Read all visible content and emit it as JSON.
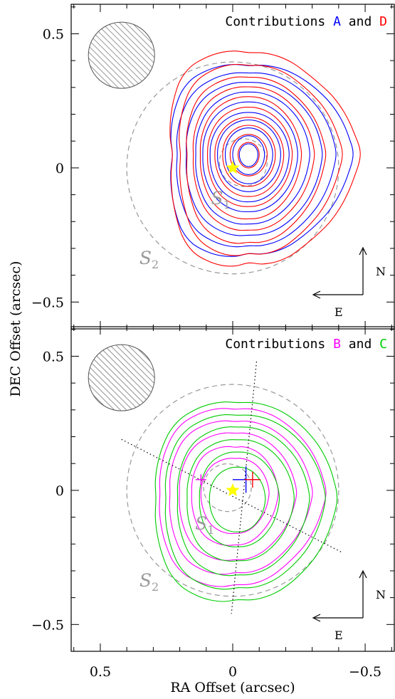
{
  "chart_data": [
    {
      "type": "contour",
      "panel": "top",
      "title_parts": {
        "prefix": "Contributions",
        "series_a": "A",
        "joiner": "and",
        "series_b": "D"
      },
      "xlabel": "",
      "ylabel": "DEC Offset (arcsec)",
      "xlim": [
        0.61,
        -0.61
      ],
      "ylim": [
        -0.6,
        0.61
      ],
      "xticks": [
        0.5,
        0,
        -0.5
      ],
      "yticks": [
        0.5,
        0,
        -0.5
      ],
      "ytick_labels": [
        "0.5",
        "0",
        "−0.5"
      ],
      "star": {
        "x": 0,
        "y": 0
      },
      "circles": [
        {
          "label": "S",
          "sub": "1",
          "cx": -0.04,
          "cy": 0.02,
          "r": 0.09
        },
        {
          "label": "S",
          "sub": "2",
          "cx": 0,
          "cy": 0,
          "r": 0.4
        }
      ],
      "beam": {
        "cx": 0.42,
        "cy": 0.42,
        "r": 0.125
      },
      "series": [
        {
          "name": "A",
          "color": "#0000ff",
          "peak": {
            "x": -0.06,
            "y": 0.05
          },
          "levels": [
            {
              "e": [
                0.32,
                0.36,
                0.34,
                0.42
              ],
              "k": [
                0.9,
                1.04,
                0.92,
                1.0,
                1.16,
                0.95,
                0.88,
                1.05
              ]
            },
            {
              "e": [
                0.29,
                0.32,
                0.3,
                0.37
              ],
              "k": [
                0.93,
                1.02,
                0.95,
                1.0,
                1.1,
                0.97,
                0.92,
                1.03
              ]
            },
            {
              "e": [
                0.25,
                0.28,
                0.26,
                0.32
              ],
              "k": [
                0.94,
                1.01,
                0.96,
                1.0,
                1.07,
                0.98,
                0.94,
                1.02
              ]
            },
            {
              "e": [
                0.21,
                0.24,
                0.22,
                0.27
              ],
              "k": [
                0.95,
                1.0,
                0.97,
                1.0,
                1.05,
                0.98,
                0.96,
                1.02
              ]
            },
            {
              "e": [
                0.18,
                0.2,
                0.18,
                0.22
              ],
              "k": [
                0.96,
                1.0,
                0.98,
                1.0,
                1.03,
                0.99,
                0.97,
                1.01
              ]
            },
            {
              "e": [
                0.15,
                0.16,
                0.15,
                0.18
              ],
              "k": [
                0.97,
                1.0,
                0.98,
                1.0,
                1.02,
                0.99,
                0.98,
                1.01
              ]
            },
            {
              "e": [
                0.12,
                0.13,
                0.12,
                0.14
              ],
              "k": [
                0.98,
                1.0,
                0.99,
                1.0,
                1.01,
                1.0,
                0.99,
                1.0
              ]
            },
            {
              "e": [
                0.09,
                0.1,
                0.09,
                0.11
              ],
              "k": [
                0.98,
                1.0,
                0.99,
                1.0,
                1.01,
                1.0,
                0.99,
                1.0
              ]
            },
            {
              "e": [
                0.06,
                0.07,
                0.06,
                0.075
              ],
              "k": [
                1,
                1,
                1,
                1,
                1,
                1,
                1,
                1
              ]
            },
            {
              "e": [
                0.035,
                0.04,
                0.035,
                0.045
              ],
              "k": [
                1,
                1,
                1,
                1,
                1,
                1,
                1,
                1
              ]
            }
          ]
        },
        {
          "name": "D",
          "color": "#ff0000",
          "peak": {
            "x": -0.06,
            "y": 0.05
          },
          "levels": [
            {
              "e": [
                0.32,
                0.4,
                0.34,
                0.47
              ],
              "k": [
                0.9,
                1.08,
                0.95,
                1.0,
                1.24,
                0.96,
                0.86,
                1.03
              ]
            },
            {
              "e": [
                0.28,
                0.35,
                0.3,
                0.42
              ],
              "k": [
                0.92,
                1.06,
                0.95,
                1.0,
                1.18,
                0.96,
                0.88,
                1.02
              ]
            },
            {
              "e": [
                0.25,
                0.3,
                0.26,
                0.36
              ],
              "k": [
                0.93,
                1.04,
                0.96,
                1.0,
                1.12,
                0.97,
                0.91,
                1.02
              ]
            },
            {
              "e": [
                0.22,
                0.26,
                0.23,
                0.3
              ],
              "k": [
                0.95,
                1.02,
                0.97,
                1.0,
                1.08,
                0.98,
                0.94,
                1.01
              ]
            },
            {
              "e": [
                0.19,
                0.22,
                0.19,
                0.25
              ],
              "k": [
                0.96,
                1.01,
                0.98,
                1.0,
                1.05,
                0.99,
                0.96,
                1.01
              ]
            },
            {
              "e": [
                0.16,
                0.18,
                0.16,
                0.2
              ],
              "k": [
                0.97,
                1.0,
                0.98,
                1.0,
                1.03,
                0.99,
                0.97,
                1.01
              ]
            },
            {
              "e": [
                0.13,
                0.14,
                0.13,
                0.16
              ],
              "k": [
                0.98,
                1.0,
                0.99,
                1.0,
                1.02,
                1.0,
                0.98,
                1.0
              ]
            },
            {
              "e": [
                0.1,
                0.11,
                0.1,
                0.12
              ],
              "k": [
                0.98,
                1.0,
                0.99,
                1.0,
                1.01,
                1.0,
                0.99,
                1.0
              ]
            },
            {
              "e": [
                0.07,
                0.075,
                0.07,
                0.08
              ],
              "k": [
                1,
                1,
                1,
                1,
                1,
                1,
                1,
                1
              ]
            },
            {
              "e": [
                0.04,
                0.045,
                0.04,
                0.05
              ],
              "k": [
                1,
                1,
                1,
                1,
                1,
                1,
                1,
                1
              ]
            }
          ]
        }
      ],
      "compass": {
        "north": "N",
        "east": "E"
      }
    },
    {
      "type": "contour",
      "panel": "bottom",
      "title_parts": {
        "prefix": "Contributions",
        "series_a": "B",
        "joiner": "and",
        "series_b": "C"
      },
      "xlabel": "RA Offset (arcsec)",
      "ylabel": "DEC Offset (arcsec)",
      "xlim": [
        0.61,
        -0.61
      ],
      "ylim": [
        -0.6,
        0.61
      ],
      "xticks": [
        0.5,
        0,
        -0.5
      ],
      "xtick_labels": [
        "0.5",
        "0",
        "−0.5"
      ],
      "yticks": [
        0.5,
        0,
        -0.5
      ],
      "ytick_labels": [
        "0.5",
        "0",
        "−0.5"
      ],
      "star": {
        "x": 0,
        "y": 0
      },
      "circles": [
        {
          "label": "S",
          "sub": "1",
          "cx": 0.02,
          "cy": 0.01,
          "r": 0.09
        },
        {
          "label": "S",
          "sub": "2",
          "cx": 0,
          "cy": 0,
          "r": 0.4
        }
      ],
      "beam": {
        "cx": 0.42,
        "cy": 0.42,
        "r": 0.125
      },
      "dotted_lines": [
        {
          "x1": 0.42,
          "y1": 0.19,
          "x2": -0.41,
          "y2": -0.23
        },
        {
          "x1": -0.09,
          "y1": 0.48,
          "x2": 0.005,
          "y2": -0.46
        }
      ],
      "crosses": [
        {
          "color": "#0000ff",
          "x": -0.05,
          "y": 0.04,
          "size": 0.05
        },
        {
          "color": "#ff0000",
          "x": -0.075,
          "y": 0.04,
          "size": 0.03
        },
        {
          "color": "#ff00ff",
          "x": 0.12,
          "y": 0.04,
          "size": 0.02
        }
      ],
      "series": [
        {
          "name": "B",
          "color": "#ff00ff",
          "peak": {
            "x": -0.01,
            "y": -0.01
          },
          "levels": [
            {
              "e": [
                0.3,
                0.34,
                0.3,
                0.38
              ],
              "k": [
                0.95,
                1.02,
                0.92,
                1.0,
                1.14,
                0.95,
                0.9,
                1.04
              ]
            },
            {
              "e": [
                0.26,
                0.29,
                0.26,
                0.33
              ],
              "k": [
                0.95,
                1.02,
                0.92,
                1.0,
                1.12,
                0.96,
                0.9,
                1.04
              ]
            },
            {
              "e": [
                0.22,
                0.24,
                0.21,
                0.27
              ],
              "k": [
                0.96,
                1.01,
                0.93,
                1.0,
                1.1,
                0.96,
                0.92,
                1.03
              ]
            },
            {
              "e": [
                0.17,
                0.19,
                0.15,
                0.21
              ],
              "k": [
                0.97,
                1.02,
                0.9,
                1.0,
                1.08,
                0.96,
                0.92,
                1.03
              ]
            },
            {
              "e": [
                0.13,
                0.14,
                0.12,
                0.16
              ],
              "k": [
                1.0,
                1.0,
                0.92,
                1.0,
                1.06,
                0.98,
                0.94,
                1.02
              ]
            }
          ]
        },
        {
          "name": "C",
          "color": "#00cc00",
          "peak": {
            "x": -0.02,
            "y": -0.03
          },
          "levels": [
            {
              "e": [
                0.33,
                0.38,
                0.34,
                0.42
              ],
              "k": [
                0.94,
                1.03,
                0.94,
                1.0,
                1.1,
                0.96,
                0.9,
                1.03
              ]
            },
            {
              "e": [
                0.29,
                0.33,
                0.3,
                0.37
              ],
              "k": [
                0.94,
                1.03,
                0.94,
                1.0,
                1.1,
                0.96,
                0.9,
                1.03
              ]
            },
            {
              "e": [
                0.24,
                0.28,
                0.25,
                0.31
              ],
              "k": [
                0.95,
                1.02,
                0.95,
                1.0,
                1.08,
                0.97,
                0.92,
                1.02
              ]
            },
            {
              "e": [
                0.2,
                0.23,
                0.2,
                0.25
              ],
              "k": [
                0.96,
                1.02,
                0.95,
                1.0,
                1.06,
                0.97,
                0.93,
                1.02
              ]
            },
            {
              "e": [
                0.15,
                0.18,
                0.15,
                0.19
              ],
              "k": [
                0.97,
                1.01,
                0.96,
                1.0,
                1.04,
                0.98,
                0.95,
                1.01
              ]
            },
            {
              "e": [
                0.11,
                0.12,
                0.1,
                0.13
              ],
              "k": [
                0.98,
                1.0,
                0.97,
                1.0,
                1.03,
                0.99,
                0.96,
                1.01
              ]
            }
          ]
        }
      ],
      "compass": {
        "north": "N",
        "east": "E"
      }
    }
  ]
}
